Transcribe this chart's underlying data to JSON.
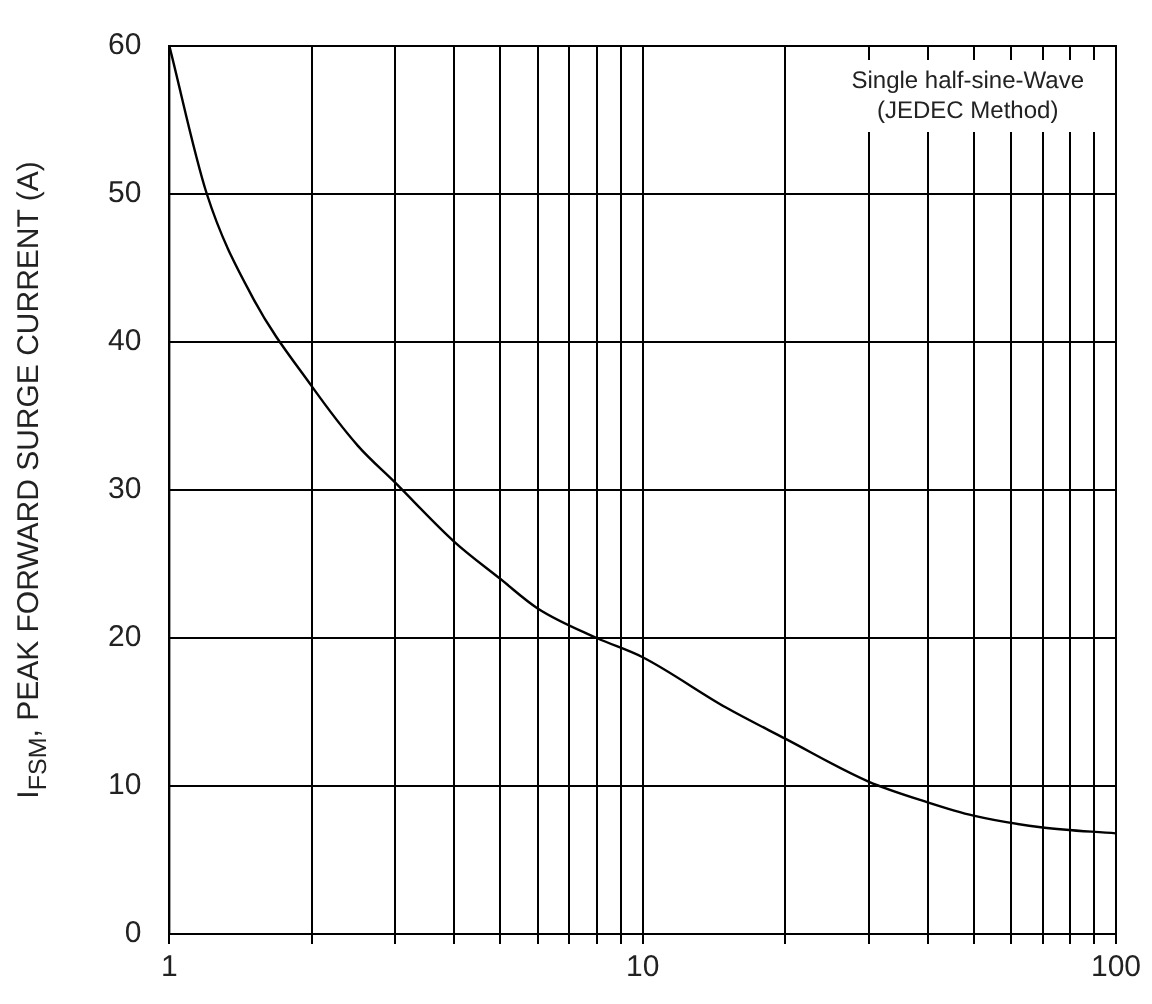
{
  "chart_data": {
    "type": "line",
    "ylabel": "I$_{FSM}$, PEAK FORWARD SURGE CURRENT (A)",
    "annotations": [
      "Single half-sine-Wave",
      "(JEDEC Method)"
    ],
    "x": [
      1,
      1.2,
      1.5,
      2,
      2.5,
      3,
      4,
      5,
      6,
      8,
      10,
      15,
      20,
      30,
      40,
      50,
      70,
      100
    ],
    "series": [
      {
        "color": "#000000",
        "values": [
          60,
          50,
          43,
          37,
          33,
          30.5,
          26.5,
          24,
          22,
          20,
          18.7,
          15.3,
          13.2,
          10.3,
          8.9,
          8,
          7.2,
          6.8
        ]
      }
    ],
    "log": "x",
    "xlim": [
      1,
      100
    ],
    "ylim": [
      0,
      60
    ],
    "xticks": [
      1,
      {
        "value": 2,
        "label": null
      },
      {
        "value": 3,
        "label": null
      },
      {
        "value": 4,
        "label": null
      },
      {
        "value": 5,
        "label": null
      },
      {
        "value": 6,
        "label": null
      },
      {
        "value": 7,
        "label": null
      },
      {
        "value": 8,
        "label": null
      },
      {
        "value": 9,
        "label": null
      },
      10,
      {
        "value": 20,
        "label": null
      },
      {
        "value": 30,
        "label": null
      },
      {
        "value": 40,
        "label": null
      },
      {
        "value": 50,
        "label": null
      },
      {
        "value": 60,
        "label": null
      },
      {
        "value": 70,
        "label": null
      },
      {
        "value": 80,
        "label": null
      },
      {
        "value": 90,
        "label": null
      },
      100
    ],
    "yticks": [
      0,
      10,
      20,
      30,
      40,
      50,
      60
    ],
    "grid": true,
    "marker": "none",
    "legend": false
  }
}
